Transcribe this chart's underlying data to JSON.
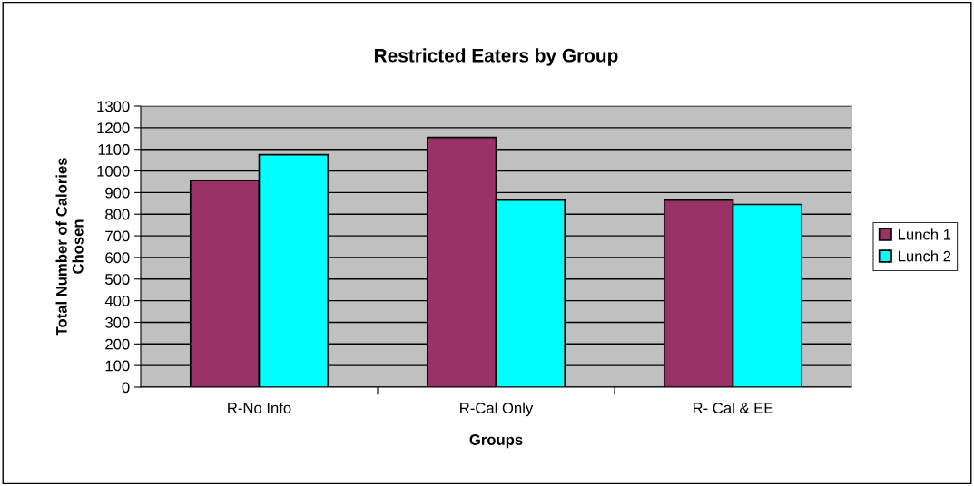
{
  "chart_data": {
    "type": "bar",
    "title": "Restricted Eaters by Group",
    "xlabel": "Groups",
    "ylabel": "Total Number of Calories\nChosen",
    "categories": [
      "R-No Info",
      "R-Cal Only",
      "R- Cal & EE"
    ],
    "series": [
      {
        "name": "Lunch 1",
        "color": "#993366",
        "values": [
          955,
          1155,
          865
        ]
      },
      {
        "name": "Lunch 2",
        "color": "#00ffff",
        "values": [
          1075,
          865,
          845
        ]
      }
    ],
    "ylim": [
      0,
      1300
    ],
    "yticks": [
      0,
      100,
      200,
      300,
      400,
      500,
      600,
      700,
      800,
      900,
      1000,
      1100,
      1200,
      1300
    ],
    "grid": "y",
    "legend": "right"
  }
}
